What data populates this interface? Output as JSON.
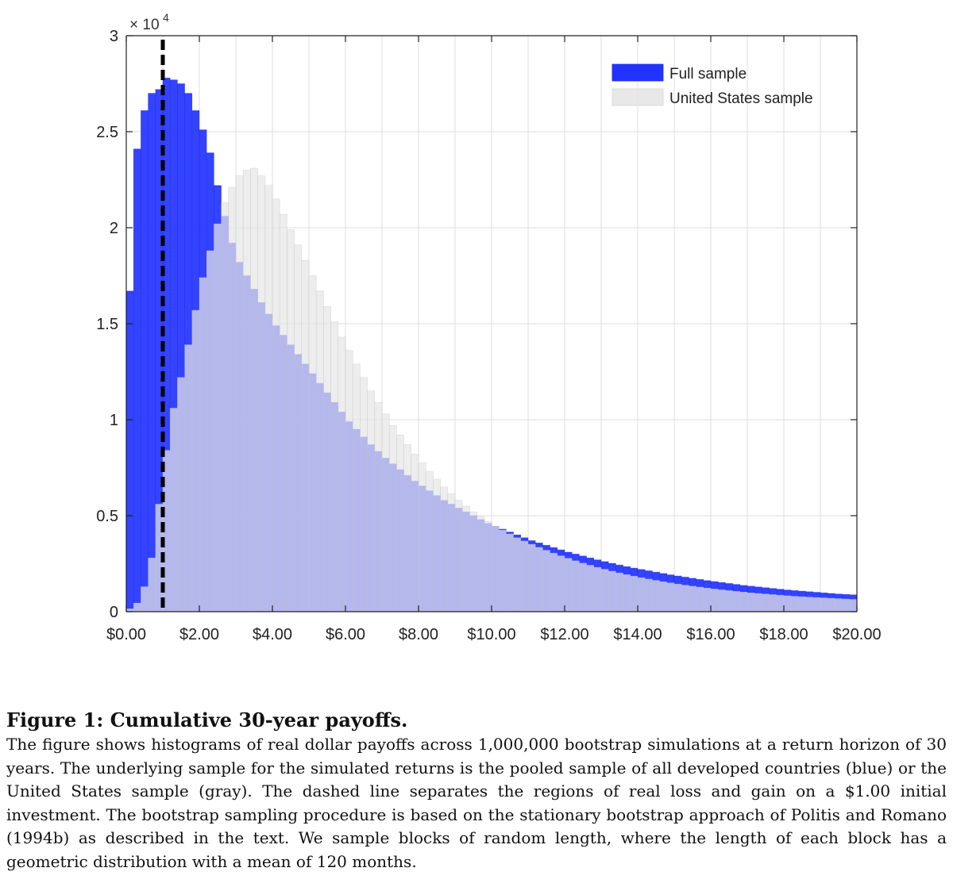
{
  "chart_data": {
    "type": "histogram",
    "x_range": [
      0,
      20
    ],
    "ylim": [
      0,
      30000
    ],
    "y_multiplier_label": "× 10",
    "y_multiplier_exponent": "4",
    "x_tick_values": [
      0,
      2,
      4,
      6,
      8,
      10,
      12,
      14,
      16,
      18,
      20
    ],
    "x_tick_labels": [
      "$0.00",
      "$2.00",
      "$4.00",
      "$6.00",
      "$8.00",
      "$10.00",
      "$12.00",
      "$14.00",
      "$16.00",
      "$18.00",
      "$20.00"
    ],
    "y_tick_values": [
      0,
      5000,
      10000,
      15000,
      20000,
      25000,
      30000
    ],
    "y_tick_labels": [
      "0",
      "0.5",
      "1",
      "1.5",
      "2",
      "2.5",
      "3"
    ],
    "grid": true,
    "legend_position": "top-right",
    "threshold_line": {
      "x": 1.0,
      "style": "dashed",
      "color": "#000000"
    },
    "bin_width": 0.2,
    "series": [
      {
        "name": "Full sample",
        "color": "#2233ff",
        "values": [
          16700,
          24100,
          26100,
          27000,
          27200,
          27800,
          27700,
          27500,
          27000,
          26100,
          25100,
          23900,
          22200,
          20600,
          19200,
          18200,
          17500,
          16800,
          16100,
          15500,
          14900,
          14400,
          13900,
          13400,
          12900,
          12400,
          11900,
          11400,
          10900,
          10400,
          9900,
          9500,
          9100,
          8700,
          8350,
          8000,
          7700,
          7400,
          7100,
          6800,
          6550,
          6300,
          6050,
          5800,
          5600,
          5400,
          5200,
          5000,
          4800,
          4600,
          4450,
          4300,
          4150,
          4000,
          3850,
          3700,
          3580,
          3460,
          3340,
          3220,
          3100,
          3000,
          2900,
          2800,
          2700,
          2610,
          2520,
          2430,
          2350,
          2270,
          2200,
          2130,
          2060,
          1990,
          1920,
          1860,
          1800,
          1740,
          1680,
          1620,
          1570,
          1520,
          1470,
          1420,
          1370,
          1330,
          1290,
          1250,
          1210,
          1170,
          1130,
          1100,
          1070,
          1040,
          1010,
          980,
          950,
          920,
          900,
          880
        ]
      },
      {
        "name": "United States sample",
        "color": "#e6e6e6",
        "values": [
          150,
          450,
          1300,
          2800,
          5600,
          8400,
          10600,
          12200,
          13900,
          15700,
          17400,
          18800,
          20200,
          21300,
          22100,
          22700,
          23000,
          23100,
          22700,
          22200,
          21500,
          20700,
          19900,
          19100,
          18300,
          17500,
          16700,
          15900,
          15100,
          14300,
          13600,
          12900,
          12200,
          11500,
          10900,
          10300,
          9700,
          9200,
          8700,
          8200,
          7750,
          7300,
          6900,
          6500,
          6150,
          5800,
          5500,
          5200,
          4950,
          4700,
          4450,
          4250,
          4050,
          3850,
          3680,
          3510,
          3350,
          3200,
          3050,
          2910,
          2780,
          2650,
          2530,
          2420,
          2310,
          2210,
          2110,
          2020,
          1930,
          1850,
          1770,
          1700,
          1630,
          1560,
          1500,
          1440,
          1380,
          1330,
          1280,
          1230,
          1180,
          1140,
          1100,
          1060,
          1020,
          980,
          950,
          920,
          890,
          860,
          830,
          800,
          780,
          760,
          740,
          720,
          700,
          680,
          660,
          640
        ]
      }
    ]
  },
  "caption": {
    "title": "Figure 1: Cumulative 30-year payoffs.",
    "body": "The figure shows histograms of real dollar payoffs across 1,000,000 bootstrap simulations at a return horizon of 30 years. The underlying sample for the simulated returns is the pooled sample of all developed countries (blue) or the United States sample (gray). The dashed line separates the regions of real loss and gain on a $1.00 initial investment. The bootstrap sampling procedure is based on the stationary bootstrap approach of Politis and Romano (1994b) as described in the text. We sample blocks of random length, where the length of each block has a geometric distribution with a mean of 120 months."
  }
}
